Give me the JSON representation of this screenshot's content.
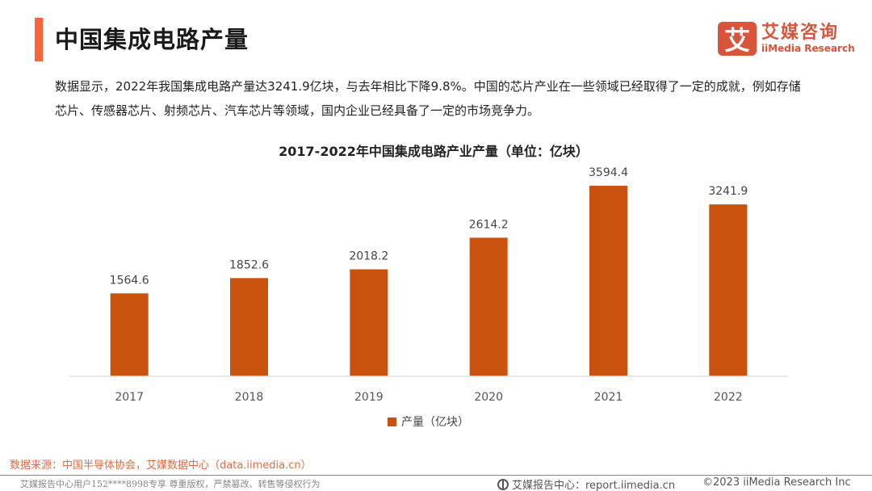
{
  "header": {
    "title": "中国集成电路产量",
    "logo_mark": "艾",
    "logo_cn": "艾媒咨询",
    "logo_en": "iiMedia Research"
  },
  "description": "数据显示，2022年我国集成电路产量达3241.9亿块，与去年相比下降9.8%。中国的芯片产业在一些领域已经取得了一定的成就，例如存储芯片、传感器芯片、射频芯片、汽车芯片等领域，国内企业已经具备了一定的市场竞争力。",
  "chart_data": {
    "type": "bar",
    "title": "2017-2022年中国集成电路产业产量（单位：亿块）",
    "categories": [
      "2017",
      "2018",
      "2019",
      "2020",
      "2021",
      "2022"
    ],
    "series": [
      {
        "name": "产量（亿块）",
        "values": [
          1564.6,
          1852.6,
          2018.2,
          2614.2,
          3594.4,
          3241.9
        ],
        "color": "#c9520e"
      }
    ],
    "data_labels": [
      "1564.6",
      "1852.6",
      "2018.2",
      "2614.2",
      "3594.4",
      "3241.9"
    ],
    "xlabel": "",
    "ylabel": "",
    "ylim": [
      0,
      3800
    ],
    "y_axis_visible": false,
    "grid": false,
    "legend": "bottom-center"
  },
  "footer": {
    "source": "数据来源：中国半导体协会，艾媒数据中心（data.iimedia.cn）",
    "copyright_notice": "艾媒报告中心用户152****8998专享 尊重版权，严禁篡改、转售等侵权行为",
    "report_center": "艾媒报告中心：report.iimedia.cn",
    "copyright": "©2023  iiMedia Research  Inc"
  }
}
